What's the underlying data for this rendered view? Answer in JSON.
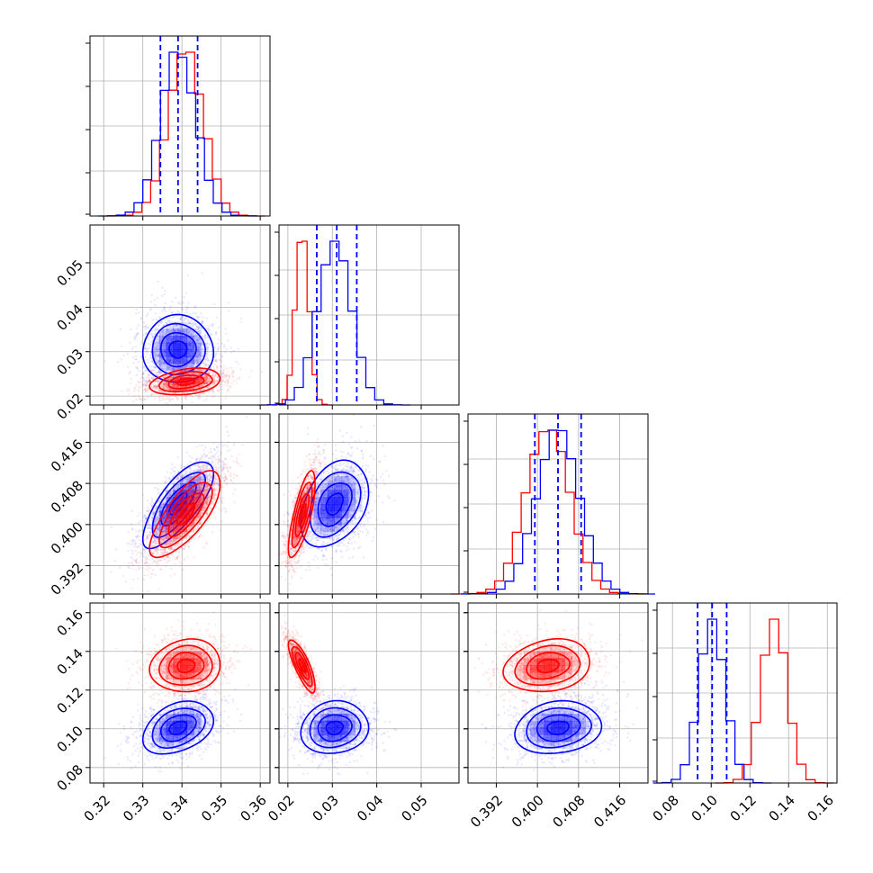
{
  "chart_data": {
    "type": "corner",
    "colors": {
      "series_a": "#0000ff",
      "series_b": "#ff0000",
      "grid": "#b0b0b0",
      "frame": "#000000"
    },
    "parameters": [
      {
        "ticks": [
          0.32,
          0.33,
          0.34,
          0.35,
          0.36
        ],
        "tick_labels": [
          "0.32",
          "0.33",
          "0.34",
          "0.35",
          "0.36"
        ],
        "range": [
          0.3165,
          0.3625
        ],
        "mean": {
          "a": 0.339,
          "b": 0.341
        },
        "std": {
          "a": 0.0045,
          "b": 0.0045
        },
        "quantiles_a": [
          0.3345,
          0.339,
          0.344
        ]
      },
      {
        "ticks": [
          0.02,
          0.03,
          0.04,
          0.05
        ],
        "tick_labels": [
          "0.02",
          "0.03",
          "0.04",
          "0.05"
        ],
        "range": [
          0.018,
          0.0585
        ],
        "mean": {
          "a": 0.0305,
          "b": 0.0232
        },
        "std": {
          "a": 0.0038,
          "b": 0.0015
        },
        "quantiles_a": [
          0.0265,
          0.031,
          0.0355
        ]
      },
      {
        "ticks": [
          0.392,
          0.4,
          0.408,
          0.416
        ],
        "tick_labels": [
          "0.392",
          "0.400",
          "0.408",
          "0.416"
        ],
        "range": [
          0.3865,
          0.4215
        ],
        "mean": {
          "a": 0.404,
          "b": 0.402
        },
        "std": {
          "a": 0.0042,
          "b": 0.0042
        },
        "quantiles_a": [
          0.3995,
          0.404,
          0.4085
        ]
      },
      {
        "ticks": [
          0.08,
          0.1,
          0.12,
          0.14,
          0.16
        ],
        "tick_labels": [
          "0.08",
          "0.10",
          "0.12",
          "0.14",
          "0.16"
        ],
        "range": [
          0.072,
          0.165
        ],
        "mean": {
          "a": 0.1005,
          "b": 0.1325
        },
        "std": {
          "a": 0.0068,
          "b": 0.0068
        },
        "quantiles_a": [
          0.093,
          0.1005,
          0.108
        ]
      }
    ],
    "correlations": {
      "1_0": {
        "a": 0.0,
        "b": 0.3
      },
      "2_0": {
        "a": 0.75,
        "b": 0.75
      },
      "2_1": {
        "a": 0.35,
        "b": 0.75
      },
      "3_0": {
        "a": 0.35,
        "b": 0.1
      },
      "3_1": {
        "a": 0.1,
        "b": -0.8
      },
      "3_2": {
        "a": 0.15,
        "b": 0.2
      }
    },
    "contour_levels_sigma": [
      0.5,
      1.0,
      1.5,
      2.0
    ],
    "grid": true,
    "legend": "none"
  }
}
